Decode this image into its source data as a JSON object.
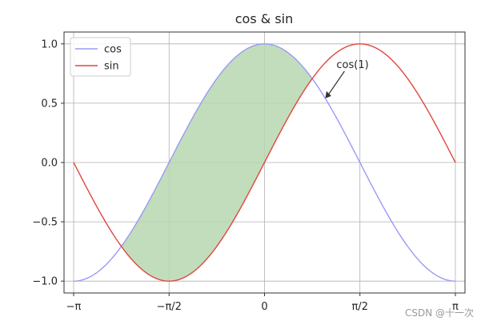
{
  "chart_data": {
    "type": "line",
    "title": "cos & sin",
    "xlabel": "",
    "ylabel": "",
    "xlim": [
      -3.3,
      3.3
    ],
    "ylim": [
      -1.1,
      1.1
    ],
    "grid": true,
    "legend_position": "upper-left",
    "xticks": [
      {
        "value": -3.14159,
        "label": "−π"
      },
      {
        "value": -1.5708,
        "label": "−π/2"
      },
      {
        "value": 0,
        "label": "0"
      },
      {
        "value": 1.5708,
        "label": "π/2"
      },
      {
        "value": 3.14159,
        "label": "π"
      }
    ],
    "yticks": [
      {
        "value": -1.0,
        "label": "−1.0"
      },
      {
        "value": -0.5,
        "label": "−0.5"
      },
      {
        "value": 0.0,
        "label": "0.0"
      },
      {
        "value": 0.5,
        "label": "0.5"
      },
      {
        "value": 1.0,
        "label": "1.0"
      }
    ],
    "series": [
      {
        "name": "cos",
        "color": "#9a9af5",
        "x": [
          -3.1416,
          -2.7489,
          -2.3562,
          -1.9635,
          -1.5708,
          -1.1781,
          -0.7854,
          -0.3927,
          0.0,
          0.3927,
          0.7854,
          1.1781,
          1.5708,
          1.9635,
          2.3562,
          2.7489,
          3.1416
        ],
        "values": [
          -1.0,
          -0.924,
          -0.707,
          -0.383,
          0.0,
          0.383,
          0.707,
          0.924,
          1.0,
          0.924,
          0.707,
          0.383,
          0.0,
          -0.383,
          -0.707,
          -0.924,
          -1.0
        ]
      },
      {
        "name": "sin",
        "color": "#e0463f",
        "x": [
          -3.1416,
          -2.7489,
          -2.3562,
          -1.9635,
          -1.5708,
          -1.1781,
          -0.7854,
          -0.3927,
          0.0,
          0.3927,
          0.7854,
          1.1781,
          1.5708,
          1.9635,
          2.3562,
          2.7489,
          3.1416
        ],
        "values": [
          0.0,
          -0.383,
          -0.707,
          -0.924,
          -1.0,
          -0.924,
          -0.707,
          -0.383,
          0.0,
          0.383,
          0.707,
          0.924,
          1.0,
          0.924,
          0.707,
          0.383,
          0.0
        ]
      }
    ],
    "fill_between": {
      "color": "#b6d7b0",
      "x_range": [
        -2.3562,
        0.7854
      ]
    },
    "annotations": [
      {
        "text": "cos(1)",
        "point": [
          1.0,
          0.5403
        ]
      }
    ]
  },
  "watermark": "CSDN @十一次"
}
